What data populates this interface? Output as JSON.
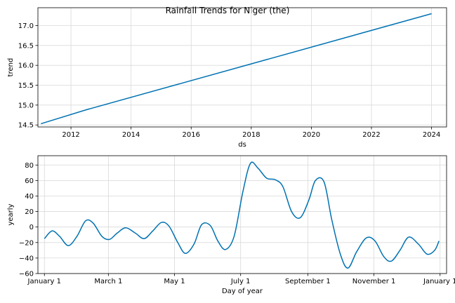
{
  "title": "Rainfall Trends for Niger (the)",
  "chart_data": [
    {
      "type": "line",
      "xlabel": "ds",
      "ylabel": "trend",
      "xlim": [
        2010.9,
        2024.5
      ],
      "ylim": [
        14.45,
        17.45
      ],
      "grid": true,
      "x_ticks": [
        2012,
        2014,
        2016,
        2018,
        2020,
        2022,
        2024
      ],
      "x_tick_labels": [
        "2012",
        "2014",
        "2016",
        "2018",
        "2020",
        "2022",
        "2024"
      ],
      "y_ticks": [
        14.5,
        15.0,
        15.5,
        16.0,
        16.5,
        17.0
      ],
      "y_tick_labels": [
        "14.5",
        "15.0",
        "15.5",
        "16.0",
        "16.5",
        "17.0"
      ],
      "series": [
        {
          "color": "#0072B2",
          "x": [
            2011.0,
            2012.5,
            2024.0
          ],
          "y": [
            14.53,
            14.88,
            17.3
          ]
        }
      ]
    },
    {
      "type": "line",
      "xlabel": "Day of year",
      "ylabel": "yearly",
      "xlim": [
        -6,
        371
      ],
      "ylim": [
        -60,
        92
      ],
      "grid": true,
      "x_ticks": [
        0,
        59,
        120,
        181,
        243,
        304,
        365
      ],
      "x_tick_labels": [
        "January 1",
        "March 1",
        "May 1",
        "July 1",
        "September 1",
        "November 1",
        "January 1"
      ],
      "y_ticks": [
        -60,
        -40,
        -20,
        0,
        20,
        40,
        60,
        80
      ],
      "y_tick_labels": [
        "−60",
        "−40",
        "−20",
        "0",
        "20",
        "40",
        "60",
        "80"
      ],
      "series": [
        {
          "color": "#0072B2",
          "x": [
            0,
            7,
            14,
            22,
            30,
            38,
            45,
            53,
            60,
            67,
            75,
            84,
            92,
            100,
            108,
            115,
            123,
            130,
            138,
            145,
            153,
            160,
            167,
            175,
            183,
            190,
            197,
            205,
            213,
            220,
            228,
            236,
            244,
            250,
            258,
            265,
            273,
            280,
            288,
            297,
            305,
            313,
            320,
            328,
            336,
            345,
            353,
            360,
            364
          ],
          "y": [
            -15,
            -5,
            -12,
            -24,
            -12,
            8,
            5,
            -12,
            -16,
            -8,
            -1,
            -8,
            -15,
            -5,
            6,
            1,
            -20,
            -34,
            -22,
            3,
            2,
            -18,
            -29,
            -12,
            45,
            82,
            76,
            63,
            61,
            52,
            20,
            12,
            35,
            60,
            58,
            10,
            -35,
            -53,
            -32,
            -14,
            -18,
            -38,
            -44,
            -30,
            -13,
            -22,
            -35,
            -30,
            -18
          ]
        }
      ]
    }
  ]
}
